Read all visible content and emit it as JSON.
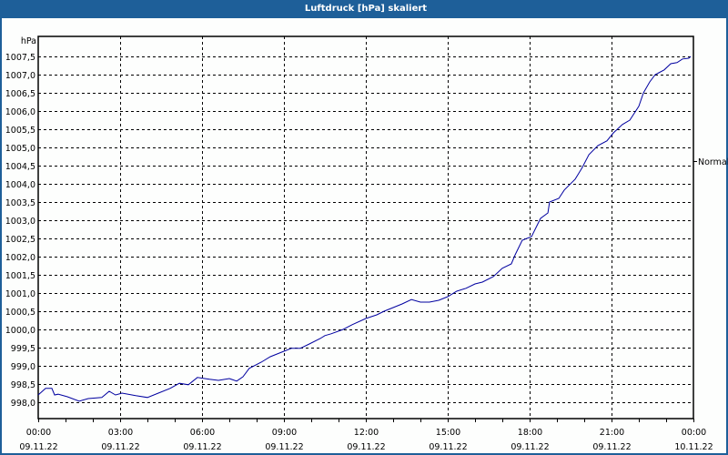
{
  "window": {
    "title": "Luftdruck [hPa] skaliert",
    "title_bg": "#1e5f99"
  },
  "chart_data": {
    "type": "line",
    "title": "Luftdruck [hPa] skaliert",
    "xlabel": "",
    "ylabel": "hPa",
    "ylim": [
      997.55,
      1008.0
    ],
    "grid": true,
    "y_ticks": [
      "1007,5",
      "1007,0",
      "1006,5",
      "1006,0",
      "1005,5",
      "1005,0",
      "1004,5",
      "1004,0",
      "1003,5",
      "1003,0",
      "1002,5",
      "1002,0",
      "1001,5",
      "1001,0",
      "1000,5",
      "1000,0",
      "999,5",
      "999,0",
      "998,5",
      "998,0"
    ],
    "y_tick_values": [
      1007.5,
      1007.0,
      1006.5,
      1006.0,
      1005.5,
      1005.0,
      1004.5,
      1004.0,
      1003.5,
      1003.0,
      1002.5,
      1002.0,
      1001.5,
      1001.0,
      1000.5,
      1000.0,
      999.5,
      999.0,
      998.5,
      998.0
    ],
    "x_ticks": [
      {
        "time": "00:00",
        "date": "09.11.22",
        "hour": 0
      },
      {
        "time": "03:00",
        "date": "09.11.22",
        "hour": 3
      },
      {
        "time": "06:00",
        "date": "09.11.22",
        "hour": 6
      },
      {
        "time": "09:00",
        "date": "09.11.22",
        "hour": 9
      },
      {
        "time": "12:00",
        "date": "09.11.22",
        "hour": 12
      },
      {
        "time": "15:00",
        "date": "09.11.22",
        "hour": 15
      },
      {
        "time": "18:00",
        "date": "09.11.22",
        "hour": 18
      },
      {
        "time": "21:00",
        "date": "09.11.22",
        "hour": 21
      },
      {
        "time": "00:00",
        "date": "10.11.22",
        "hour": 24
      }
    ],
    "annotation": {
      "label": "Normal",
      "value": 1004.62
    },
    "series": [
      {
        "name": "Luftdruck",
        "color": "#0000a0",
        "x_hours": [
          0,
          0.27,
          0.5,
          0.6,
          0.73,
          1.07,
          1.5,
          1.83,
          2.33,
          2.6,
          2.83,
          3.07,
          3.57,
          4.0,
          4.4,
          4.83,
          5.17,
          5.5,
          5.83,
          6.27,
          6.6,
          7.0,
          7.27,
          7.5,
          7.73,
          8.17,
          8.5,
          9.0,
          9.27,
          9.6,
          9.93,
          10.33,
          10.5,
          10.73,
          11.17,
          11.5,
          12.0,
          12.4,
          12.67,
          13.0,
          13.33,
          13.67,
          14.0,
          14.33,
          14.67,
          15.0,
          15.33,
          15.67,
          16.0,
          16.27,
          16.67,
          17.0,
          17.33,
          17.47,
          17.73,
          18.07,
          18.4,
          18.67,
          18.73,
          19.07,
          19.27,
          19.67,
          19.93,
          20.17,
          20.5,
          20.83,
          21.07,
          21.4,
          21.67,
          22.0,
          22.17,
          22.4,
          22.6,
          22.73,
          22.93,
          23.17,
          23.4,
          23.6,
          23.83,
          23.9
        ],
        "values": [
          998.2,
          998.38,
          998.38,
          998.2,
          998.22,
          998.15,
          998.03,
          998.1,
          998.13,
          998.3,
          998.2,
          998.25,
          998.18,
          998.13,
          998.25,
          998.38,
          998.52,
          998.48,
          998.68,
          998.63,
          998.6,
          998.65,
          998.58,
          998.7,
          998.93,
          999.1,
          999.25,
          999.4,
          999.48,
          999.48,
          999.6,
          999.75,
          999.83,
          999.88,
          1000.0,
          1000.13,
          1000.3,
          1000.4,
          1000.5,
          1000.6,
          1000.7,
          1000.82,
          1000.75,
          1000.75,
          1000.8,
          1000.9,
          1001.05,
          1001.13,
          1001.25,
          1001.3,
          1001.45,
          1001.68,
          1001.8,
          1002.05,
          1002.45,
          1002.55,
          1003.05,
          1003.2,
          1003.5,
          1003.6,
          1003.83,
          1004.13,
          1004.45,
          1004.8,
          1005.05,
          1005.18,
          1005.4,
          1005.63,
          1005.75,
          1006.13,
          1006.5,
          1006.8,
          1007.0,
          1007.05,
          1007.13,
          1007.3,
          1007.33,
          1007.43,
          1007.45,
          1007.5
        ]
      }
    ]
  }
}
